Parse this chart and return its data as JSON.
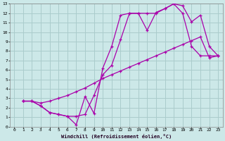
{
  "bg_color": "#cce8e8",
  "grid_color": "#aacccc",
  "line_color": "#aa00aa",
  "xlim": [
    -0.5,
    23.5
  ],
  "ylim": [
    0,
    13
  ],
  "xticks": [
    0,
    1,
    2,
    3,
    4,
    5,
    6,
    7,
    8,
    9,
    10,
    11,
    12,
    13,
    14,
    15,
    16,
    17,
    18,
    19,
    20,
    21,
    22,
    23
  ],
  "yticks": [
    0,
    1,
    2,
    3,
    4,
    5,
    6,
    7,
    8,
    9,
    10,
    11,
    12,
    13
  ],
  "xlabel": "Windchill (Refroidissement éolien,°C)",
  "line1_x": [
    1,
    2,
    3,
    4,
    5,
    6,
    7,
    8,
    9,
    10,
    11,
    12,
    13,
    14,
    15,
    16,
    17,
    18,
    19,
    20,
    21,
    22,
    23
  ],
  "line1_y": [
    2.7,
    2.7,
    2.2,
    1.5,
    1.3,
    1.1,
    0.2,
    3.2,
    1.4,
    6.2,
    8.5,
    11.8,
    12.0,
    12.0,
    10.2,
    12.1,
    12.5,
    13.0,
    12.8,
    11.1,
    11.8,
    8.5,
    7.5
  ],
  "line2_x": [
    1,
    2,
    3,
    4,
    5,
    6,
    7,
    8,
    9,
    10,
    11,
    12,
    13,
    14,
    15,
    16,
    17,
    18,
    19,
    20,
    21,
    22,
    23
  ],
  "line2_y": [
    2.7,
    2.7,
    2.2,
    1.5,
    1.3,
    1.1,
    1.1,
    1.3,
    3.3,
    5.5,
    6.5,
    9.2,
    12.0,
    12.0,
    12.0,
    12.0,
    12.5,
    13.0,
    12.0,
    8.5,
    7.5,
    7.5,
    7.5
  ],
  "line3_x": [
    1,
    2,
    3,
    4,
    5,
    6,
    7,
    8,
    9,
    10,
    11,
    12,
    13,
    14,
    15,
    16,
    17,
    18,
    19,
    20,
    21,
    22,
    23
  ],
  "line3_y": [
    2.7,
    2.7,
    2.5,
    2.7,
    3.0,
    3.3,
    3.7,
    4.1,
    4.6,
    5.1,
    5.5,
    5.9,
    6.3,
    6.7,
    7.1,
    7.5,
    7.9,
    8.3,
    8.7,
    9.1,
    9.5,
    7.3,
    7.5
  ]
}
